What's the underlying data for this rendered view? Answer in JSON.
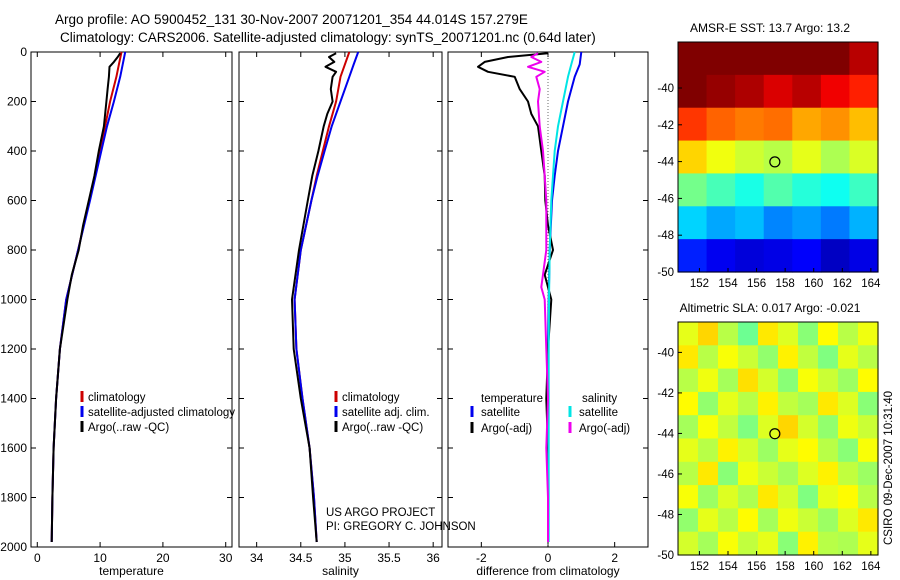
{
  "header": {
    "line1": "Argo profile: AO 5900452_131 30-Nov-2007 20071201_354 44.014S 157.279E",
    "line2": "Climatology: CARS2006. Satellite-adjusted climatology: synTS_20071201.nc (0.64d later)"
  },
  "credits": {
    "project": "US ARGO PROJECT",
    "pi": "PI: GREGORY C. JOHNSON",
    "stamp": "CSIRO 09-Dec-2007 10:31:40"
  },
  "colors": {
    "climatology": "#cc0000",
    "satellite": "#0000ee",
    "argo": "#000000",
    "salinity_satellite": "#00e5e5",
    "salinity_argo": "#ee00ee"
  },
  "chart_data": [
    {
      "type": "line",
      "id": "temperature-profile",
      "xlabel": "temperature",
      "xlim": [
        -1,
        31
      ],
      "ylim": [
        2000,
        0
      ],
      "xticks": [
        "0",
        "10",
        "20",
        "30"
      ],
      "yticks": [
        "0",
        "200",
        "400",
        "600",
        "800",
        "1000",
        "1200",
        "1400",
        "1600",
        "1800",
        "2000"
      ],
      "legend": [
        "climatology",
        "satellite-adjusted climatology",
        "Argo(..raw -QC)"
      ],
      "legend_position": "bottom-right",
      "series": [
        {
          "name": "climatology",
          "color": "#cc0000",
          "depth": [
            0,
            50,
            100,
            200,
            300,
            400,
            600,
            800,
            1000,
            1200,
            1400,
            1600,
            1800,
            1980
          ],
          "values": [
            13.4,
            13.0,
            12.6,
            11.6,
            10.8,
            10.0,
            8.3,
            6.5,
            4.6,
            3.6,
            3.0,
            2.6,
            2.4,
            2.3
          ]
        },
        {
          "name": "satellite-adjusted climatology",
          "color": "#0000ee",
          "depth": [
            0,
            50,
            100,
            200,
            300,
            400,
            600,
            800,
            1000,
            1200,
            1400,
            1600,
            1800,
            1980
          ],
          "values": [
            14.0,
            13.6,
            13.2,
            12.2,
            11.1,
            10.2,
            8.4,
            6.5,
            4.6,
            3.6,
            3.0,
            2.6,
            2.4,
            2.3
          ]
        },
        {
          "name": "Argo(..raw -QC)",
          "color": "#000000",
          "depth": [
            5,
            20,
            40,
            60,
            100,
            150,
            200,
            300,
            400,
            500,
            600,
            700,
            800,
            900,
            1000,
            1200,
            1400,
            1600,
            1800,
            1980
          ],
          "values": [
            13.2,
            12.8,
            12.2,
            11.5,
            11.4,
            11.2,
            11.0,
            10.6,
            9.8,
            9.1,
            8.2,
            7.3,
            6.6,
            5.5,
            4.8,
            3.6,
            3.0,
            2.6,
            2.4,
            2.3
          ]
        }
      ]
    },
    {
      "type": "line",
      "id": "salinity-profile",
      "xlabel": "salinity",
      "xlim": [
        33.8,
        36.1
      ],
      "ylim": [
        2000,
        0
      ],
      "xticks": [
        "34",
        "34.5",
        "35",
        "35.5",
        "36"
      ],
      "legend": [
        "climatology",
        "satellite adj. clim.",
        "Argo(..raw -QC)"
      ],
      "legend_position": "bottom-right",
      "series": [
        {
          "name": "climatology",
          "color": "#cc0000",
          "depth": [
            0,
            50,
            100,
            200,
            300,
            400,
            500,
            600,
            800,
            1000,
            1200,
            1400,
            1600,
            1800,
            1980
          ],
          "values": [
            35.05,
            35.0,
            34.95,
            34.9,
            34.82,
            34.75,
            34.68,
            34.62,
            34.5,
            34.43,
            34.45,
            34.52,
            34.6,
            34.65,
            34.68
          ]
        },
        {
          "name": "satellite adj. clim.",
          "color": "#0000ee",
          "depth": [
            0,
            50,
            100,
            200,
            300,
            400,
            500,
            600,
            800,
            1000,
            1200,
            1400,
            1600,
            1800,
            1980
          ],
          "values": [
            35.15,
            35.1,
            35.05,
            34.95,
            34.85,
            34.77,
            34.69,
            34.62,
            34.5,
            34.43,
            34.45,
            34.52,
            34.6,
            34.65,
            34.68
          ]
        },
        {
          "name": "Argo(..raw -QC)",
          "color": "#000000",
          "depth": [
            5,
            20,
            40,
            60,
            80,
            100,
            150,
            200,
            250,
            300,
            400,
            500,
            600,
            800,
            1000,
            1200,
            1400,
            1600,
            1800,
            1980
          ],
          "values": [
            34.9,
            34.82,
            34.88,
            34.78,
            34.9,
            34.86,
            34.84,
            34.86,
            34.8,
            34.76,
            34.7,
            34.63,
            34.58,
            34.48,
            34.4,
            34.42,
            34.5,
            34.6,
            34.64,
            34.68
          ]
        }
      ]
    },
    {
      "type": "line",
      "id": "difference-profile",
      "xlabel": "difference from climatology",
      "xlim": [
        -3,
        3
      ],
      "ylim": [
        2000,
        0
      ],
      "xticks": [
        "-2",
        "0",
        "2"
      ],
      "legend_temperature_title": "temperature",
      "legend_salinity_title": "salinity",
      "legend": [
        "satellite",
        "Argo(-adj)",
        "satellite",
        "Argo(-adj)"
      ],
      "legend_position": "bottom-right",
      "series": [
        {
          "name": "satellite",
          "group": "temperature",
          "color": "#0000ee",
          "depth": [
            0,
            50,
            100,
            200,
            300,
            400,
            500,
            600,
            800,
            1000,
            1200,
            1400,
            1600,
            1800,
            1980
          ],
          "values": [
            1.0,
            0.95,
            0.8,
            0.6,
            0.45,
            0.3,
            0.2,
            0.12,
            0.05,
            0.02,
            0.0,
            0.0,
            0.0,
            0.0,
            0.0
          ]
        },
        {
          "name": "Argo(-adj)",
          "group": "temperature",
          "color": "#000000",
          "depth": [
            5,
            20,
            40,
            60,
            80,
            100,
            150,
            200,
            250,
            300,
            400,
            500,
            600,
            700,
            800,
            900,
            1000,
            1200,
            1400,
            1600,
            1800,
            1980
          ],
          "values": [
            0.0,
            -1.2,
            -1.9,
            -2.1,
            -1.8,
            -1.0,
            -0.85,
            -0.6,
            -0.5,
            -0.3,
            -0.2,
            -0.1,
            -0.08,
            0.0,
            0.15,
            -0.1,
            0.1,
            0.0,
            -0.05,
            0.0,
            0.0,
            0.0
          ]
        },
        {
          "name": "satellite",
          "group": "salinity",
          "color": "#00e5e5",
          "depth": [
            0,
            50,
            100,
            200,
            300,
            400,
            600,
            800,
            1000,
            1200,
            1400,
            1600,
            1800,
            1980
          ],
          "values": [
            0.8,
            0.7,
            0.6,
            0.45,
            0.3,
            0.2,
            0.1,
            0.05,
            0.03,
            0.02,
            0.02,
            0.02,
            0.02,
            0.02
          ]
        },
        {
          "name": "Argo(-adj)",
          "group": "salinity",
          "color": "#ee00ee",
          "depth": [
            5,
            20,
            40,
            60,
            80,
            100,
            150,
            200,
            300,
            400,
            500,
            600,
            800,
            950,
            1000,
            1200,
            1400,
            1600,
            1800,
            1980
          ],
          "values": [
            -0.3,
            -0.5,
            -0.2,
            -0.6,
            -0.1,
            -0.35,
            -0.25,
            -0.3,
            -0.25,
            -0.15,
            -0.1,
            -0.05,
            -0.05,
            -0.2,
            -0.1,
            -0.05,
            0.0,
            -0.05,
            0.0,
            0.0
          ]
        }
      ]
    },
    {
      "type": "heatmap",
      "id": "sst-map",
      "title": "AMSR-E SST: 13.7 Argo: 13.2",
      "xlim": [
        150.5,
        164.5
      ],
      "ylim": [
        -50,
        -37.5
      ],
      "xticks": [
        "152",
        "154",
        "156",
        "158",
        "160",
        "162",
        "164"
      ],
      "yticks": [
        "-40",
        "-42",
        "-44",
        "-46",
        "-48",
        "-50"
      ],
      "value_range": [
        6,
        15
      ],
      "marker": {
        "lon": 157.279,
        "lat": -44.014
      },
      "grid_cols": 7,
      "grid_rows": 7,
      "values": [
        [
          15,
          15,
          15,
          15,
          15,
          15,
          14.5
        ],
        [
          15,
          14.8,
          14.6,
          14.2,
          14.5,
          14.0,
          13.6
        ],
        [
          13.4,
          13.0,
          12.8,
          12.9,
          12.4,
          12.6,
          12.2
        ],
        [
          12.0,
          11.5,
          11.2,
          11.0,
          11.4,
          10.9,
          11.3
        ],
        [
          10.4,
          10.0,
          9.6,
          10.1,
          9.7,
          9.5,
          9.9
        ],
        [
          9.0,
          8.6,
          8.8,
          8.3,
          8.5,
          8.2,
          8.7
        ],
        [
          7.4,
          7.0,
          6.8,
          6.9,
          7.1,
          6.6,
          6.9
        ]
      ]
    },
    {
      "type": "heatmap",
      "id": "sla-map",
      "title": "Altimetric SLA: 0.017 Argo: -0.021",
      "xlim": [
        150.5,
        164.5
      ],
      "ylim": [
        -50,
        -38.5
      ],
      "xticks": [
        "152",
        "154",
        "156",
        "158",
        "160",
        "162",
        "164"
      ],
      "yticks": [
        "-40",
        "-42",
        "-44",
        "-46",
        "-48",
        "-50"
      ],
      "value_range": [
        -0.3,
        0.3
      ],
      "marker": {
        "lon": 157.279,
        "lat": -44.014
      },
      "grid_cols": 10,
      "grid_rows": 10,
      "values": [
        [
          0.05,
          0.12,
          0.0,
          -0.08,
          0.1,
          0.04,
          -0.05,
          0.08,
          0.0,
          0.06
        ],
        [
          0.1,
          0.0,
          0.07,
          0.02,
          -0.04,
          0.09,
          0.01,
          -0.06,
          0.05,
          0.0
        ],
        [
          0.0,
          0.06,
          -0.02,
          0.11,
          0.03,
          -0.05,
          0.07,
          0.02,
          -0.03,
          0.08
        ],
        [
          0.08,
          -0.04,
          0.05,
          0.0,
          0.09,
          0.01,
          -0.02,
          0.1,
          0.04,
          -0.05
        ],
        [
          -0.02,
          0.07,
          0.01,
          -0.06,
          0.04,
          0.12,
          0.03,
          -0.04,
          0.06,
          0.02
        ],
        [
          0.05,
          0.0,
          0.09,
          0.03,
          -0.03,
          0.05,
          0.08,
          0.0,
          -0.05,
          0.07
        ],
        [
          0.0,
          0.1,
          -0.05,
          0.06,
          0.02,
          -0.02,
          0.04,
          0.09,
          0.01,
          -0.03
        ],
        [
          0.07,
          -0.03,
          0.04,
          -0.01,
          0.1,
          0.03,
          -0.06,
          0.05,
          0.08,
          0.0
        ],
        [
          -0.04,
          0.05,
          0.0,
          0.08,
          -0.02,
          0.06,
          0.02,
          -0.03,
          0.04,
          0.1
        ],
        [
          0.03,
          -0.02,
          0.07,
          0.01,
          0.05,
          -0.05,
          0.09,
          0.0,
          -0.01,
          0.05
        ]
      ]
    }
  ]
}
